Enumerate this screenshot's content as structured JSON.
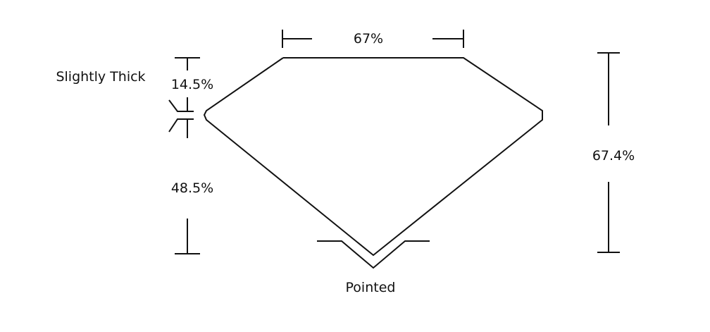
{
  "labels": {
    "table": "67%",
    "crown_height": "14.5%",
    "girdle": "Slightly Thick",
    "pavilion_depth": "48.5%",
    "total_depth": "67.4%",
    "culet": "Pointed"
  },
  "colors": {
    "line": "#111111",
    "background": "#ffffff"
  }
}
